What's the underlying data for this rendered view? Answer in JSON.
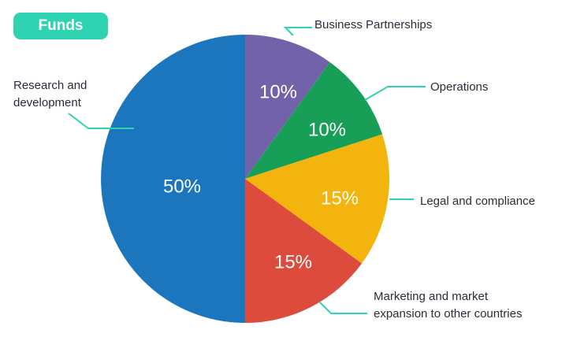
{
  "badge": {
    "label": "Funds",
    "color": "#2ed3b1"
  },
  "chart_data": {
    "type": "pie",
    "title": "Funds",
    "unit": "%",
    "start_angle_deg": 0,
    "direction": "clockwise",
    "leader_color": "#2ed3b1",
    "label_color": "#2b2b3a",
    "slices": [
      {
        "label": "Business Partnerships",
        "label_lines": [
          "Business Partnerships"
        ],
        "value": 10,
        "display": "10%",
        "color": "#7262aa"
      },
      {
        "label": "Operations",
        "label_lines": [
          "Operations"
        ],
        "value": 10,
        "display": "10%",
        "color": "#189f57"
      },
      {
        "label": "Legal and compliance",
        "label_lines": [
          "Legal and compliance"
        ],
        "value": 15,
        "display": "15%",
        "color": "#f3b40d"
      },
      {
        "label": "Marketing and market expansion to other countries",
        "label_lines": [
          "Marketing and market",
          "expansion to other countries"
        ],
        "value": 15,
        "display": "15%",
        "color": "#dd4b3c"
      },
      {
        "label": "Research and development",
        "label_lines": [
          "Research and",
          "development"
        ],
        "value": 50,
        "display": "50%",
        "color": "#1c76bd"
      }
    ]
  }
}
